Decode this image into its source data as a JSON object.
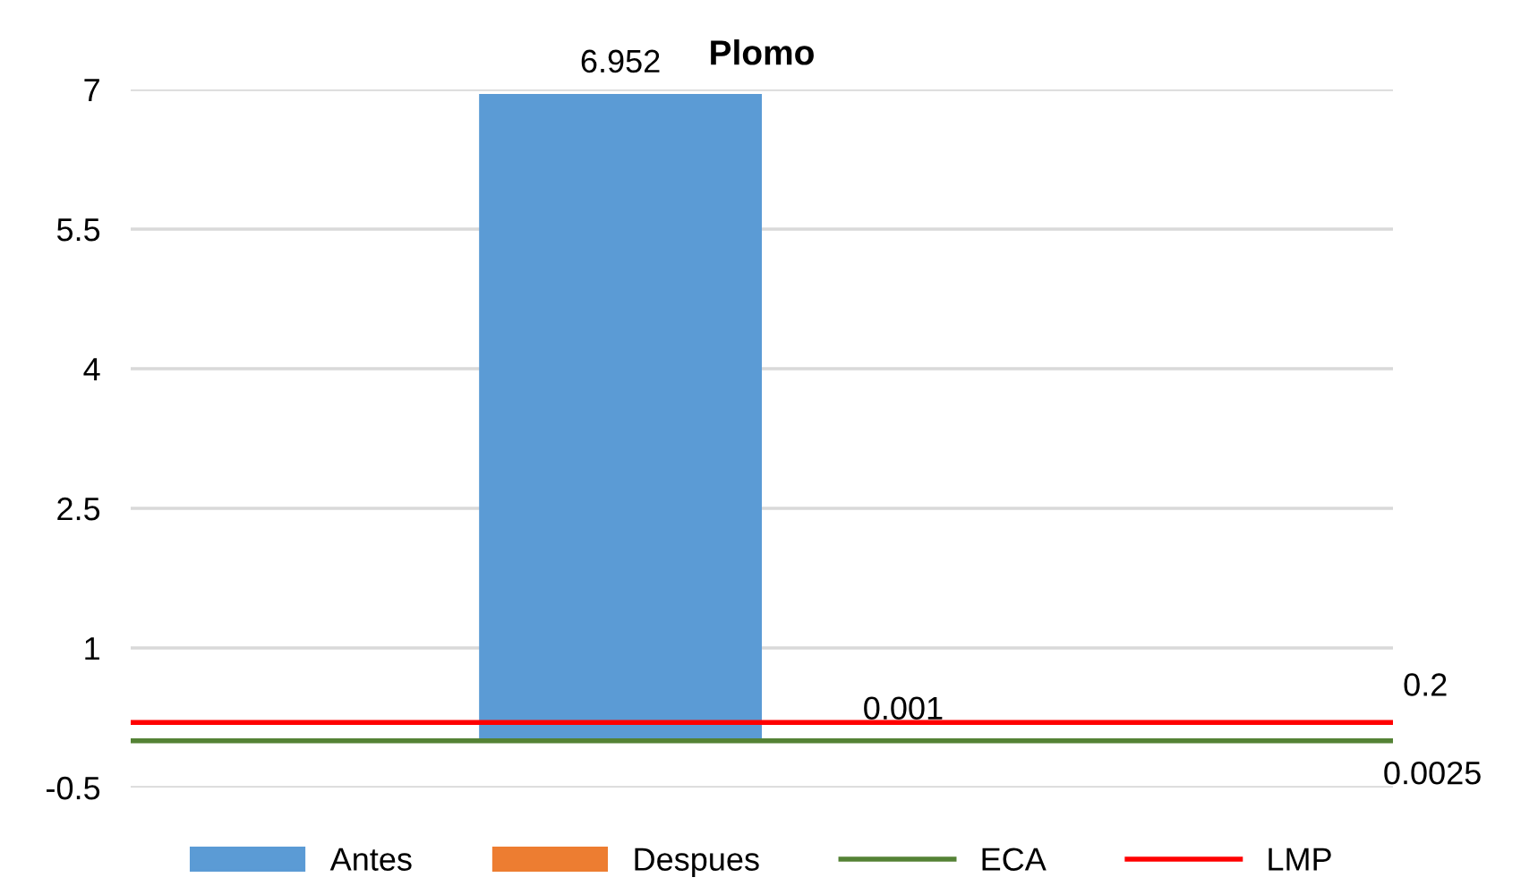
{
  "chart_data": {
    "type": "bar",
    "title": "Plomo",
    "categories": [
      null
    ],
    "series": [
      {
        "name": "Antes",
        "color": "#5b9bd5",
        "values": [
          6.952
        ]
      },
      {
        "name": "Despues",
        "color": "#ed7d31",
        "values": [
          0.001
        ]
      }
    ],
    "ref_lines": [
      {
        "axis": "y",
        "value": 0.0025,
        "label": "ECA",
        "color": "#548235",
        "line_style": "solid"
      },
      {
        "axis": "y",
        "value": 0.2,
        "label": "LMP",
        "color": "#ff0000",
        "line_style": "solid"
      }
    ],
    "annotations": [
      "0.0025",
      "0.2"
    ],
    "data_labels": true,
    "ylim": [
      -0.5,
      7
    ],
    "yticks": [
      -0.5,
      1,
      2.5,
      4,
      5.5,
      7
    ],
    "grid": "y",
    "legend": "bottom"
  }
}
